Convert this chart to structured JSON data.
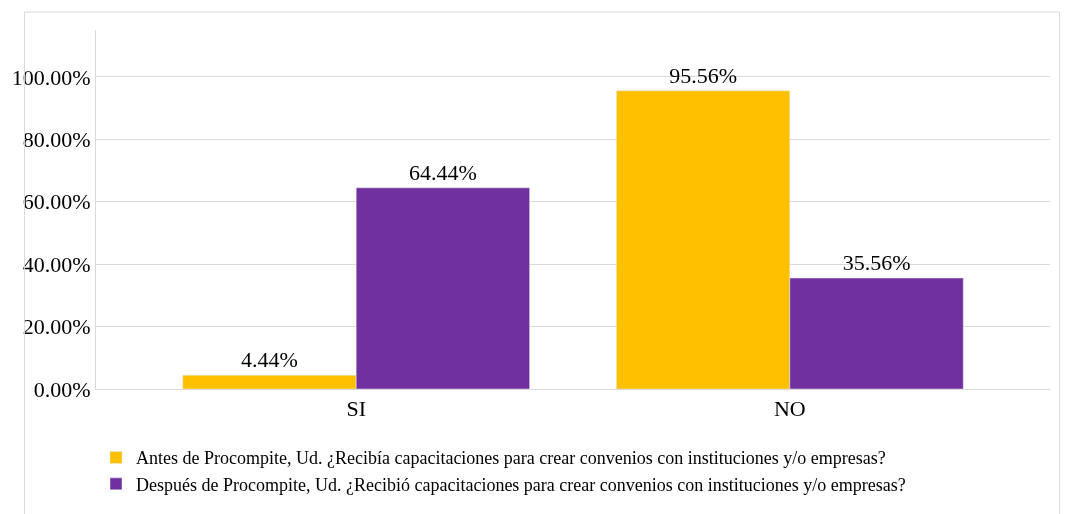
{
  "chart_data": {
    "type": "bar",
    "categories": [
      "SI",
      "NO"
    ],
    "series": [
      {
        "name": "Antes de Procompite, Ud. ¿Recibía capacitaciones para crear convenios con instituciones y/o empresas?",
        "color": "#ffc000",
        "values": [
          4.44,
          95.56
        ],
        "value_labels": [
          "4.44%",
          "95.56%"
        ]
      },
      {
        "name": "Después de Procompite, Ud. ¿Recibió capacitaciones para crear convenios con instituciones y/o empresas?",
        "color": "#7030a0",
        "values": [
          64.44,
          35.56
        ],
        "value_labels": [
          "64.44%",
          "35.56%"
        ]
      }
    ],
    "ylim": [
      0,
      115
    ],
    "yticks": [
      {
        "value": 0,
        "label": "0.00%"
      },
      {
        "value": 20,
        "label": "20.00%"
      },
      {
        "value": 40,
        "label": "40.00%"
      },
      {
        "value": 60,
        "label": "60.00%"
      },
      {
        "value": 80,
        "label": "80.00%"
      },
      {
        "value": 100,
        "label": "100.00%"
      }
    ],
    "grid": "y",
    "legend": "bottom"
  }
}
